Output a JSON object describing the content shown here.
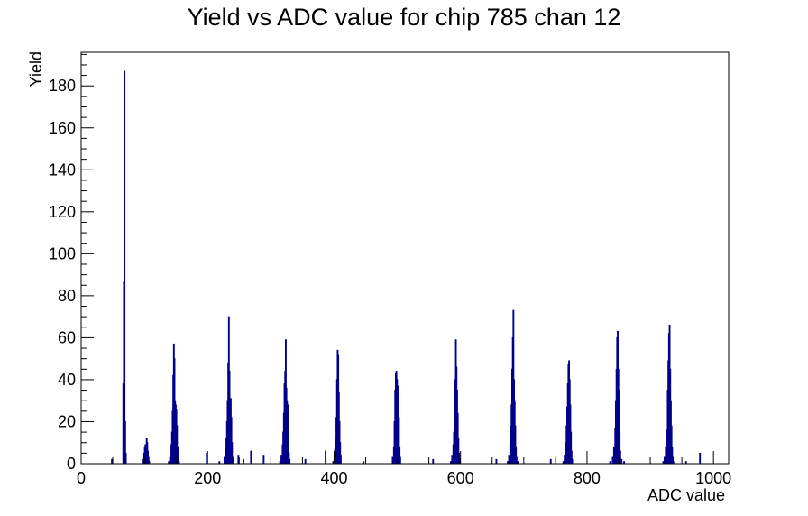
{
  "chart_data": {
    "type": "bar",
    "style": "histogram",
    "title": "Yield vs ADC value for chip 785 chan 12",
    "xlabel": "ADC value",
    "ylabel": "Yield",
    "xlim": [
      0,
      1024
    ],
    "ylim": [
      0,
      196
    ],
    "x_ticks": [
      0,
      200,
      400,
      600,
      800,
      1000
    ],
    "y_ticks": [
      0,
      20,
      40,
      60,
      80,
      100,
      120,
      140,
      160,
      180
    ],
    "bin_width": 1,
    "series": [
      {
        "color": "#00008b",
        "points": [
          [
            48,
            2
          ],
          [
            66,
            38
          ],
          [
            67,
            87
          ],
          [
            68,
            187
          ],
          [
            69,
            20
          ],
          [
            70,
            5
          ],
          [
            98,
            2
          ],
          [
            99,
            5
          ],
          [
            100,
            8
          ],
          [
            101,
            9
          ],
          [
            102,
            8
          ],
          [
            103,
            12
          ],
          [
            104,
            10
          ],
          [
            105,
            6
          ],
          [
            106,
            3
          ],
          [
            107,
            1
          ],
          [
            138,
            1
          ],
          [
            140,
            3
          ],
          [
            142,
            9
          ],
          [
            143,
            15
          ],
          [
            144,
            25
          ],
          [
            145,
            42
          ],
          [
            146,
            57
          ],
          [
            147,
            50
          ],
          [
            148,
            30
          ],
          [
            149,
            28
          ],
          [
            150,
            26
          ],
          [
            151,
            18
          ],
          [
            152,
            8
          ],
          [
            153,
            3
          ],
          [
            154,
            1
          ],
          [
            198,
            5
          ],
          [
            218,
            1
          ],
          [
            226,
            3
          ],
          [
            228,
            8
          ],
          [
            229,
            12
          ],
          [
            230,
            20
          ],
          [
            231,
            30
          ],
          [
            232,
            48
          ],
          [
            233,
            70
          ],
          [
            234,
            44
          ],
          [
            235,
            31
          ],
          [
            236,
            31
          ],
          [
            237,
            22
          ],
          [
            238,
            10
          ],
          [
            239,
            3
          ],
          [
            240,
            1
          ],
          [
            248,
            4
          ],
          [
            256,
            2
          ],
          [
            268,
            6
          ],
          [
            288,
            4
          ],
          [
            314,
            1
          ],
          [
            316,
            4
          ],
          [
            318,
            9
          ],
          [
            319,
            15
          ],
          [
            320,
            24
          ],
          [
            321,
            38
          ],
          [
            322,
            44
          ],
          [
            323,
            59
          ],
          [
            324,
            36
          ],
          [
            325,
            30
          ],
          [
            326,
            28
          ],
          [
            327,
            14
          ],
          [
            328,
            5
          ],
          [
            329,
            2
          ],
          [
            354,
            2
          ],
          [
            386,
            6
          ],
          [
            398,
            1
          ],
          [
            400,
            4
          ],
          [
            401,
            7
          ],
          [
            402,
            12
          ],
          [
            403,
            22
          ],
          [
            404,
            40
          ],
          [
            405,
            54
          ],
          [
            406,
            52
          ],
          [
            407,
            34
          ],
          [
            408,
            20
          ],
          [
            409,
            10
          ],
          [
            410,
            4
          ],
          [
            446,
            1
          ],
          [
            492,
            3
          ],
          [
            494,
            8
          ],
          [
            495,
            20
          ],
          [
            496,
            35
          ],
          [
            497,
            43
          ],
          [
            498,
            44
          ],
          [
            499,
            40
          ],
          [
            500,
            37
          ],
          [
            501,
            35
          ],
          [
            502,
            22
          ],
          [
            503,
            8
          ],
          [
            504,
            3
          ],
          [
            556,
            2
          ],
          [
            584,
            1
          ],
          [
            586,
            4
          ],
          [
            588,
            9
          ],
          [
            589,
            15
          ],
          [
            590,
            28
          ],
          [
            591,
            40
          ],
          [
            592,
            59
          ],
          [
            593,
            46
          ],
          [
            594,
            35
          ],
          [
            595,
            24
          ],
          [
            596,
            12
          ],
          [
            597,
            5
          ],
          [
            598,
            2
          ],
          [
            656,
            2
          ],
          [
            674,
            1
          ],
          [
            676,
            4
          ],
          [
            678,
            9
          ],
          [
            679,
            18
          ],
          [
            680,
            28
          ],
          [
            681,
            45
          ],
          [
            682,
            60
          ],
          [
            683,
            73
          ],
          [
            684,
            40
          ],
          [
            685,
            30
          ],
          [
            686,
            18
          ],
          [
            687,
            8
          ],
          [
            688,
            3
          ],
          [
            690,
            1
          ],
          [
            742,
            2
          ],
          [
            762,
            1
          ],
          [
            764,
            4
          ],
          [
            766,
            10
          ],
          [
            767,
            18
          ],
          [
            768,
            27
          ],
          [
            769,
            38
          ],
          [
            770,
            47
          ],
          [
            771,
            49
          ],
          [
            772,
            40
          ],
          [
            773,
            28
          ],
          [
            774,
            15
          ],
          [
            775,
            6
          ],
          [
            776,
            2
          ],
          [
            836,
            1
          ],
          [
            840,
            3
          ],
          [
            842,
            8
          ],
          [
            844,
            17
          ],
          [
            845,
            30
          ],
          [
            846,
            45
          ],
          [
            847,
            60
          ],
          [
            848,
            63
          ],
          [
            849,
            45
          ],
          [
            850,
            35
          ],
          [
            851,
            15
          ],
          [
            852,
            6
          ],
          [
            854,
            2
          ],
          [
            858,
            1
          ],
          [
            920,
            1
          ],
          [
            922,
            3
          ],
          [
            924,
            8
          ],
          [
            926,
            16
          ],
          [
            927,
            35
          ],
          [
            928,
            49
          ],
          [
            929,
            62
          ],
          [
            930,
            66
          ],
          [
            931,
            45
          ],
          [
            932,
            30
          ],
          [
            933,
            18
          ],
          [
            934,
            8
          ],
          [
            935,
            3
          ],
          [
            936,
            1
          ],
          [
            956,
            1
          ],
          [
            978,
            5
          ]
        ]
      }
    ],
    "legend": "none",
    "grid": false
  }
}
